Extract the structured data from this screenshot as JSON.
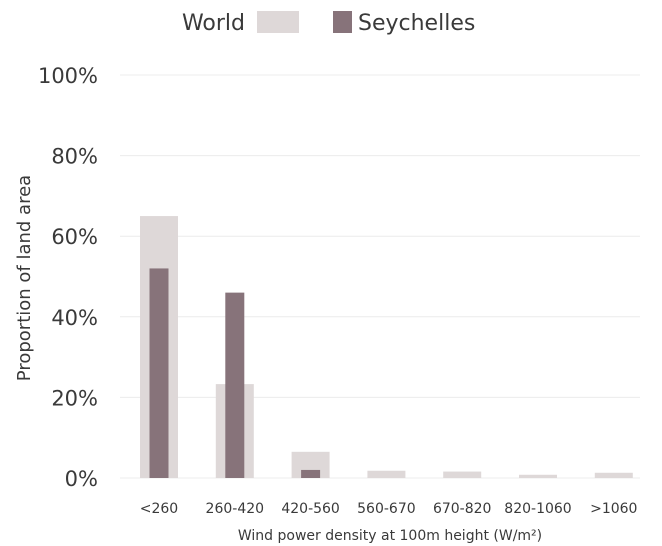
{
  "chart_data": {
    "type": "bar",
    "categories": [
      "<260",
      "260-420",
      "420-560",
      "560-670",
      "670-820",
      "820-1060",
      ">1060"
    ],
    "series": [
      {
        "name": "World",
        "values": [
          65,
          23.3,
          6.5,
          1.8,
          1.6,
          0.8,
          1.3
        ],
        "color": "#ded8d8"
      },
      {
        "name": "Seychelles",
        "values": [
          52,
          46,
          2,
          0,
          0,
          0,
          0
        ],
        "color": "#87737a"
      }
    ],
    "ylim": [
      0,
      100
    ],
    "yticks": [
      "0%",
      "20%",
      "40%",
      "60%",
      "80%",
      "100%"
    ],
    "ytick_values": [
      0,
      20,
      40,
      60,
      80,
      100
    ],
    "xlabel": "Wind power density at 100m height (W/m²)",
    "ylabel": "Proportion of land area",
    "legend_position": "top-center",
    "grid": true
  }
}
